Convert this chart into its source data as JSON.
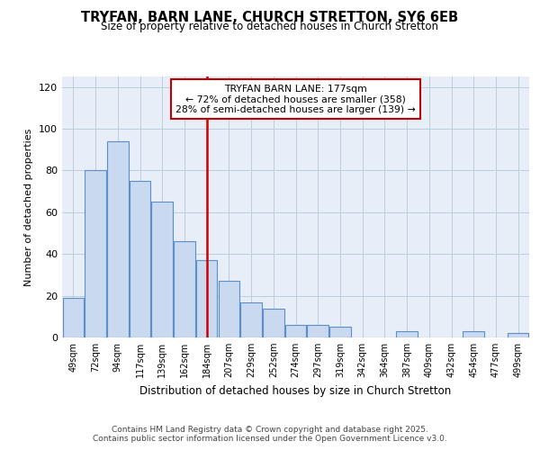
{
  "title": "TRYFAN, BARN LANE, CHURCH STRETTON, SY6 6EB",
  "subtitle": "Size of property relative to detached houses in Church Stretton",
  "xlabel": "Distribution of detached houses by size in Church Stretton",
  "ylabel": "Number of detached properties",
  "bar_labels": [
    "49sqm",
    "72sqm",
    "94sqm",
    "117sqm",
    "139sqm",
    "162sqm",
    "184sqm",
    "207sqm",
    "229sqm",
    "252sqm",
    "274sqm",
    "297sqm",
    "319sqm",
    "342sqm",
    "364sqm",
    "387sqm",
    "409sqm",
    "432sqm",
    "454sqm",
    "477sqm",
    "499sqm"
  ],
  "bar_values": [
    19,
    80,
    94,
    75,
    65,
    46,
    37,
    27,
    17,
    14,
    6,
    6,
    5,
    0,
    0,
    3,
    0,
    0,
    3,
    0,
    2
  ],
  "bar_color": "#c9d9f0",
  "bar_edge_color": "#5b8fc9",
  "annotation_label": "TRYFAN BARN LANE: 177sqm",
  "annotation_line1": "← 72% of detached houses are smaller (358)",
  "annotation_line2": "28% of semi-detached houses are larger (139) →",
  "annotation_box_edge": "#c00000",
  "annotation_box_fill": "#ffffff",
  "vline_color": "#cc0000",
  "ylim": [
    0,
    125
  ],
  "yticks": [
    0,
    20,
    40,
    60,
    80,
    100,
    120
  ],
  "grid_color": "#bbccdd",
  "background_color": "#e8eef8",
  "footer_line1": "Contains HM Land Registry data © Crown copyright and database right 2025.",
  "footer_line2": "Contains public sector information licensed under the Open Government Licence v3.0."
}
